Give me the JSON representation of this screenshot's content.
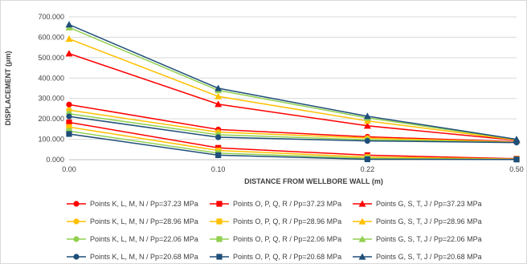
{
  "chart_data": {
    "type": "line",
    "title": "",
    "xlabel": "DISTANCE FROM WELLBORE WALL (m)",
    "ylabel": "DISPLACEMENT (μm)",
    "x": [
      0.0,
      0.1,
      0.22,
      0.5
    ],
    "x_tick_labels": [
      "0.00",
      "0.10",
      "0.22",
      "0.50"
    ],
    "ylim": [
      0,
      700
    ],
    "y_ticks": [
      0,
      100,
      200,
      300,
      400,
      500,
      600,
      700
    ],
    "y_tick_labels": [
      "0.000",
      "100.000",
      "200.000",
      "300.000",
      "400.000",
      "500.000",
      "600.000",
      "700.000"
    ],
    "grid": "horizontal",
    "legend_position": "bottom",
    "series": [
      {
        "name": "Points K, L, M, N / Pp=37.23 MPa",
        "color": "#ff0000",
        "marker": "circle",
        "values": [
          270,
          148,
          112,
          88
        ]
      },
      {
        "name": "Points O, P, Q, R / Pp=37.23 MPa",
        "color": "#ff0000",
        "marker": "square",
        "values": [
          183,
          58,
          22,
          5
        ]
      },
      {
        "name": "Points G, S, T, J / Pp=37.23 MPa",
        "color": "#ff0000",
        "marker": "triangle",
        "values": [
          520,
          272,
          166,
          95
        ]
      },
      {
        "name": "Points K, L, M, N / Pp=28.96 MPa",
        "color": "#ffc000",
        "marker": "circle",
        "values": [
          243,
          135,
          106,
          86
        ]
      },
      {
        "name": "Points O, P, Q, R / Pp=28.96 MPa",
        "color": "#ffc000",
        "marker": "square",
        "values": [
          160,
          45,
          13,
          3
        ]
      },
      {
        "name": "Points G, S, T, J / Pp=28.96 MPa",
        "color": "#ffc000",
        "marker": "triangle",
        "values": [
          592,
          310,
          190,
          97
        ]
      },
      {
        "name": "Points K, L, M, N / Pp=22.06 MPa",
        "color": "#92d050",
        "marker": "circle",
        "values": [
          225,
          122,
          98,
          85
        ]
      },
      {
        "name": "Points O, P, Q, R / Pp=22.06 MPa",
        "color": "#92d050",
        "marker": "square",
        "values": [
          140,
          32,
          7,
          2
        ]
      },
      {
        "name": "Points G, S, T, J / Pp=22.06 MPa",
        "color": "#92d050",
        "marker": "triangle",
        "values": [
          648,
          340,
          205,
          99
        ]
      },
      {
        "name": "Points K, L, M, N / Pp=20.68 MPa",
        "color": "#1f4e79",
        "marker": "circle",
        "values": [
          212,
          110,
          92,
          84
        ]
      },
      {
        "name": "Points O, P, Q, R / Pp=20.68 MPa",
        "color": "#1f4e79",
        "marker": "square",
        "values": [
          126,
          22,
          2,
          1
        ]
      },
      {
        "name": "Points G, S, T, J / Pp=20.68 MPa",
        "color": "#1f4e79",
        "marker": "triangle",
        "values": [
          662,
          350,
          213,
          100
        ]
      }
    ]
  }
}
